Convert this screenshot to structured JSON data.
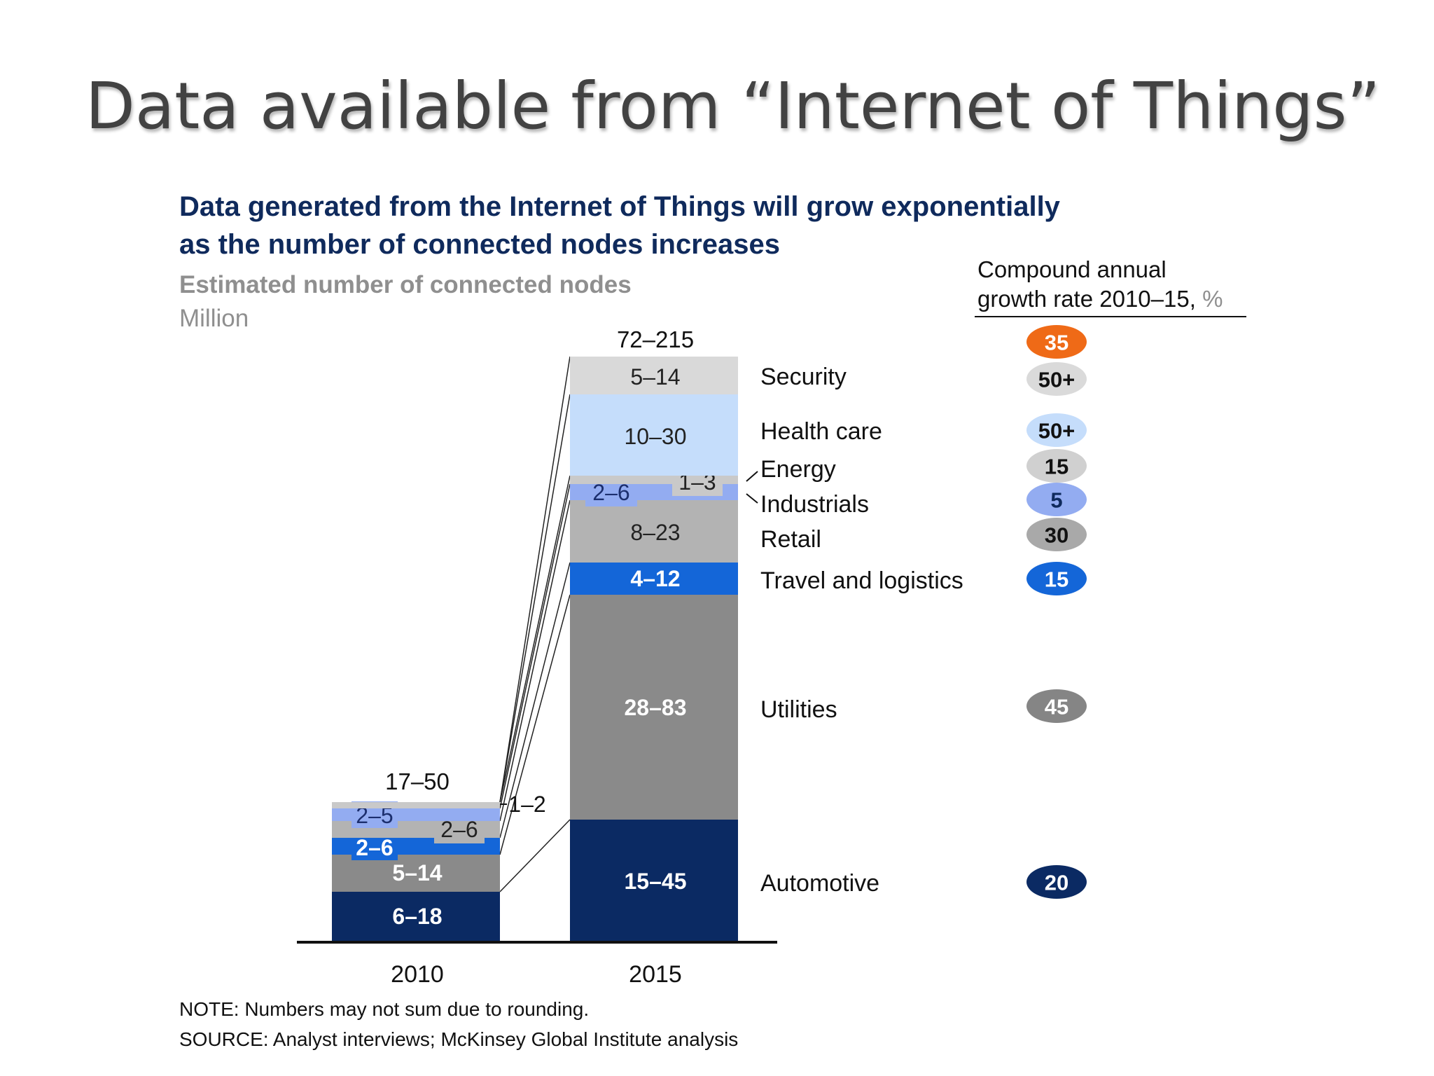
{
  "slide": {
    "title": "Data available from “Internet of Things”"
  },
  "chart_data": {
    "type": "bar",
    "stacked": true,
    "heading": [
      "Data generated from the Internet of Things will grow exponentially",
      "as the number of connected nodes increases"
    ],
    "subtitle": "Estimated number of connected nodes",
    "unit": "Million",
    "categories": [
      "2010",
      "2015"
    ],
    "totals": [
      "17–50",
      "72–215"
    ],
    "cagr_header": [
      "Compound annual",
      "growth rate 2010–15, "
    ],
    "cagr_unit": "%",
    "series": [
      {
        "name": "Automotive",
        "labels": [
          "6–18",
          "15–45"
        ],
        "low": [
          6,
          15
        ],
        "high": [
          18,
          45
        ],
        "cagr": "20",
        "color": "#0b2a63",
        "text_color": "#ffffff",
        "cagr_color": "#0b2a63",
        "cagr_text": "#ffffff"
      },
      {
        "name": "Utilities",
        "labels": [
          "5–14",
          "28–83"
        ],
        "low": [
          5,
          28
        ],
        "high": [
          14,
          83
        ],
        "cagr": "45",
        "color": "#8a8a8a",
        "text_color": "#ffffff",
        "cagr_color": "#858585",
        "cagr_text": "#ffffff"
      },
      {
        "name": "Travel and logistics",
        "labels": [
          "2–6",
          "4–12"
        ],
        "low": [
          2,
          4
        ],
        "high": [
          6,
          12
        ],
        "cagr": "15",
        "color": "#1466d8",
        "text_color": "#ffffff",
        "cagr_color": "#1466d8",
        "cagr_text": "#ffffff"
      },
      {
        "name": "Retail",
        "labels": [
          "2–6",
          "8–23"
        ],
        "low": [
          2,
          8
        ],
        "high": [
          6,
          23
        ],
        "cagr": "30",
        "color": "#b3b3b3",
        "text_color": "#222222",
        "cagr_color": "#a9a9a9",
        "cagr_text": "#111111"
      },
      {
        "name": "Industrials",
        "labels": [
          "2–5",
          "2–6"
        ],
        "low": [
          2,
          2
        ],
        "high": [
          5,
          6
        ],
        "cagr": "5",
        "color": "#93acf1",
        "text_color": "#1c2f6e",
        "cagr_color": "#93acf1",
        "cagr_text": "#0f2a5c"
      },
      {
        "name": "Energy",
        "labels": [
          "1–2",
          "1–3"
        ],
        "low": [
          1,
          1
        ],
        "high": [
          2,
          3
        ],
        "cagr": "15",
        "color": "#c9c9c9",
        "text_color": "#222222",
        "cagr_color": "#d0d0d0",
        "cagr_text": "#111111"
      },
      {
        "name": "Health care",
        "labels": [
          "",
          "10–30"
        ],
        "low": [
          null,
          10
        ],
        "high": [
          null,
          30
        ],
        "cagr": "50+",
        "color": "#c5ddfb",
        "text_color": "#222222",
        "cagr_color": "#c5ddfb",
        "cagr_text": "#111111"
      },
      {
        "name": "Security",
        "labels": [
          "",
          "5–14"
        ],
        "low": [
          null,
          5
        ],
        "high": [
          null,
          14
        ],
        "cagr": "50+",
        "color": "#d9d9d9",
        "text_color": "#222222",
        "cagr_color": "#dadada",
        "cagr_text": "#111111"
      }
    ],
    "highlight": {
      "label": "35",
      "color": "#ef6a17",
      "text_color": "#ffffff"
    },
    "note": "NOTE: Numbers may not sum due to rounding.",
    "source": "SOURCE: Analyst interviews; McKinsey Global Institute analysis"
  }
}
